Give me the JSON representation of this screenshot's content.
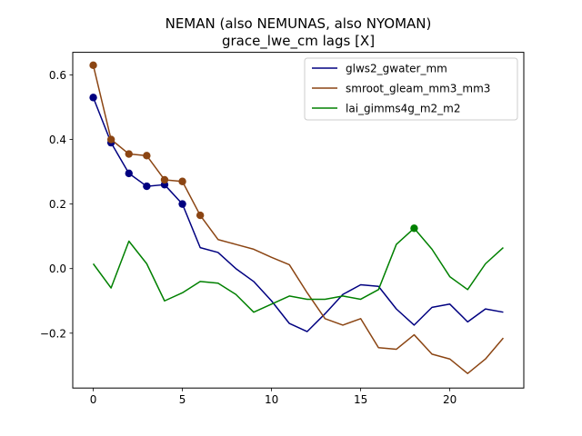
{
  "chart_data": {
    "type": "line",
    "title": "NEMAN (also NEMUNAS, also NYOMAN)",
    "subtitle": "grace_lwe_cm lags [X]",
    "xlabel": "",
    "ylabel": "",
    "xlim": [
      -1.15,
      24.15
    ],
    "ylim": [
      -0.37,
      0.67
    ],
    "x_ticks": [
      0,
      5,
      10,
      15,
      20
    ],
    "y_ticks": [
      -0.2,
      0.0,
      0.2,
      0.4,
      0.6
    ],
    "y_tick_labels": [
      "−0.2",
      "0.0",
      "0.2",
      "0.4",
      "0.6"
    ],
    "grid": false,
    "legend_position": "top-right",
    "x": [
      0,
      1,
      2,
      3,
      4,
      5,
      6,
      7,
      8,
      9,
      10,
      11,
      12,
      13,
      14,
      15,
      16,
      17,
      18,
      19,
      20,
      21,
      22,
      23
    ],
    "series": [
      {
        "name": "glws2_gwater_mm",
        "color": "#000080",
        "values": [
          0.53,
          0.39,
          0.295,
          0.255,
          0.26,
          0.2,
          0.065,
          0.05,
          0.0,
          -0.04,
          -0.1,
          -0.17,
          -0.195,
          -0.14,
          -0.08,
          -0.05,
          -0.055,
          -0.125,
          -0.175,
          -0.12,
          -0.11,
          -0.165,
          -0.125,
          -0.135
        ],
        "markers": [
          0,
          1,
          2,
          3,
          4,
          5
        ]
      },
      {
        "name": "smroot_gleam_mm3_mm3",
        "color": "#8b4513",
        "values": [
          0.63,
          0.4,
          0.355,
          0.35,
          0.275,
          0.27,
          0.165,
          0.09,
          0.075,
          0.06,
          0.035,
          0.012,
          -0.075,
          -0.155,
          -0.175,
          -0.155,
          -0.245,
          -0.25,
          -0.205,
          -0.265,
          -0.28,
          -0.325,
          -0.28,
          -0.215
        ],
        "markers": [
          0,
          1,
          2,
          3,
          4,
          5,
          6
        ]
      },
      {
        "name": "lai_gimms4g_m2_m2",
        "color": "#008000",
        "values": [
          0.015,
          -0.06,
          0.085,
          0.015,
          -0.1,
          -0.075,
          -0.04,
          -0.045,
          -0.08,
          -0.135,
          -0.11,
          -0.085,
          -0.095,
          -0.095,
          -0.085,
          -0.095,
          -0.065,
          0.075,
          0.125,
          0.06,
          -0.025,
          -0.065,
          0.015,
          0.065
        ],
        "markers": [
          18
        ]
      }
    ]
  }
}
